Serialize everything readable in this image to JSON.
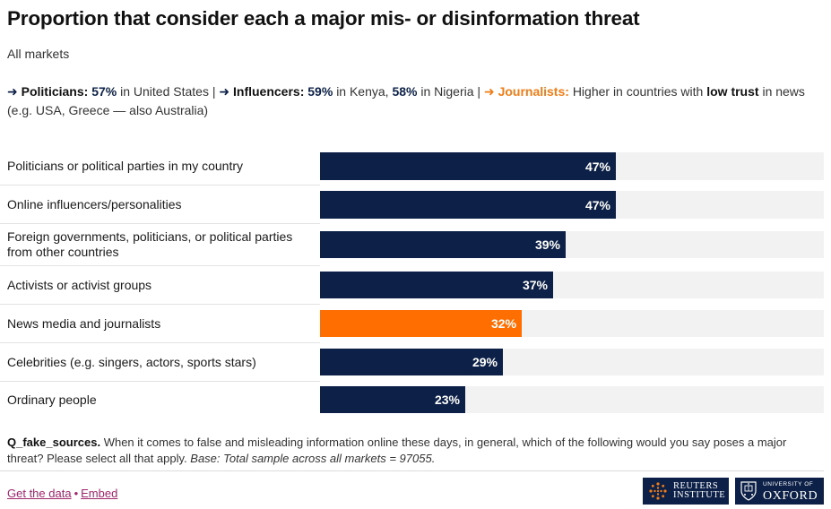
{
  "title": "Proportion that consider each a major mis- or disinformation threat",
  "subtitle": "All markets",
  "note": {
    "arrow": "➜",
    "politicians_label": "Politicians:",
    "politicians_value": "57%",
    "politicians_place": "in United States",
    "sep": "|",
    "influencers_label": "Influencers:",
    "influencers_value1": "59%",
    "influencers_place1": "in Kenya,",
    "influencers_value2": "58%",
    "influencers_place2": "in Nigeria",
    "journalists_label": "Journalists:",
    "journalists_text1": "Higher in countries with",
    "journalists_bold": "low trust",
    "journalists_text2": "in news (e.g. USA, Greece — also Australia)"
  },
  "chart_data": {
    "type": "bar",
    "orientation": "horizontal",
    "categories": [
      "Politicians or political parties in my country",
      "Online influencers/personalities",
      "Foreign governments, politicians, or political parties from other countries",
      "Activists or activist groups",
      "News media and journalists",
      "Celebrities (e.g. singers, actors, sports stars)",
      "Ordinary people"
    ],
    "values": [
      47,
      47,
      39,
      37,
      32,
      29,
      23
    ],
    "value_labels": [
      "47%",
      "47%",
      "39%",
      "37%",
      "32%",
      "29%",
      "23%"
    ],
    "highlight_index": 4,
    "xlim": [
      0,
      80
    ],
    "colors": {
      "default": "#0d2148",
      "highlight": "#ff6e00",
      "track": "#f2f2f2"
    }
  },
  "footnote": {
    "question_id": "Q_fake_sources.",
    "question": "When it comes to false and misleading information online these days, in general, which of the following would you say poses a major threat? Please select all that apply.",
    "base": "Base: Total sample across all markets = 97055."
  },
  "links": {
    "get_data": "Get the data",
    "separator": "•",
    "embed": "Embed"
  },
  "logos": {
    "reuters_line1": "REUTERS",
    "reuters_line2": "INSTITUTE",
    "oxford_line1": "UNIVERSITY OF",
    "oxford_line2": "OXFORD"
  }
}
